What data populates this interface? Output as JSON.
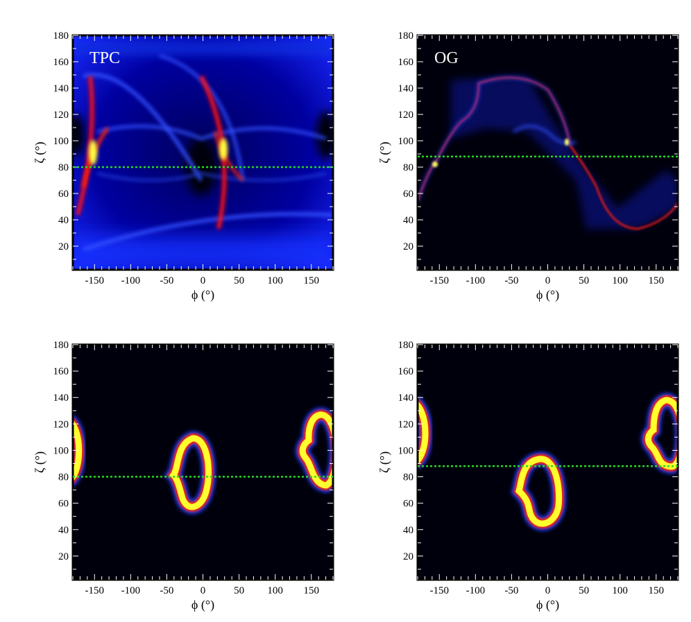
{
  "chart_data": [
    {
      "type": "heatmap",
      "panel_label": "TPC",
      "xlabel": "ϕ (°)",
      "ylabel": "ζ (°)",
      "xlim": [
        -180,
        180
      ],
      "ylim": [
        0,
        180
      ],
      "xticks": [
        -150,
        -100,
        -50,
        0,
        50,
        100,
        150
      ],
      "yticks": [
        20,
        40,
        60,
        80,
        100,
        120,
        140,
        160,
        180
      ],
      "reference_line_zeta": 80,
      "reference_line_color": "#22dd22"
    },
    {
      "type": "heatmap",
      "panel_label": "OG",
      "xlabel": "ϕ (°)",
      "ylabel": "ζ (°)",
      "xlim": [
        -180,
        180
      ],
      "ylim": [
        0,
        180
      ],
      "xticks": [
        -150,
        -100,
        -50,
        0,
        50,
        100,
        150
      ],
      "yticks": [
        20,
        40,
        60,
        80,
        100,
        120,
        140,
        160,
        180
      ],
      "reference_line_zeta": 88,
      "reference_line_color": "#22dd22"
    },
    {
      "type": "heatmap",
      "panel_label": "",
      "xlabel": "ϕ (°)",
      "ylabel": "ζ (°)",
      "xlim": [
        -180,
        180
      ],
      "ylim": [
        0,
        180
      ],
      "xticks": [
        -150,
        -100,
        -50,
        0,
        50,
        100,
        150
      ],
      "yticks": [
        20,
        40,
        60,
        80,
        100,
        120,
        140,
        160,
        180
      ],
      "reference_line_zeta": 80,
      "reference_line_color": "#22dd22"
    },
    {
      "type": "heatmap",
      "panel_label": "",
      "xlabel": "ϕ (°)",
      "ylabel": "ζ (°)",
      "xlim": [
        -180,
        180
      ],
      "ylim": [
        0,
        180
      ],
      "xticks": [
        -150,
        -100,
        -50,
        0,
        50,
        100,
        150
      ],
      "yticks": [
        20,
        40,
        60,
        80,
        100,
        120,
        140,
        160,
        180
      ],
      "reference_line_zeta": 88,
      "reference_line_color": "#22dd22"
    }
  ]
}
